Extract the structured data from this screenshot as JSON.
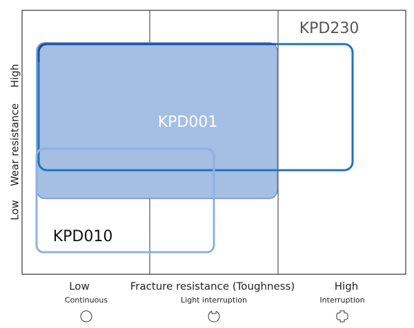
{
  "y_axis": {
    "title": "Wear resistance",
    "low": "Low",
    "high": "High"
  },
  "x_axis": {
    "title": "Fracture resistance (Toughness)",
    "levels": [
      {
        "label": "Low",
        "sublabel": "Continuous"
      },
      {
        "label": "Light interruption"
      },
      {
        "label": "High",
        "sublabel": "Interruption"
      }
    ]
  },
  "grades": [
    {
      "label": "KPD230"
    },
    {
      "label": "KPD001"
    },
    {
      "label": "KPD010"
    }
  ]
}
